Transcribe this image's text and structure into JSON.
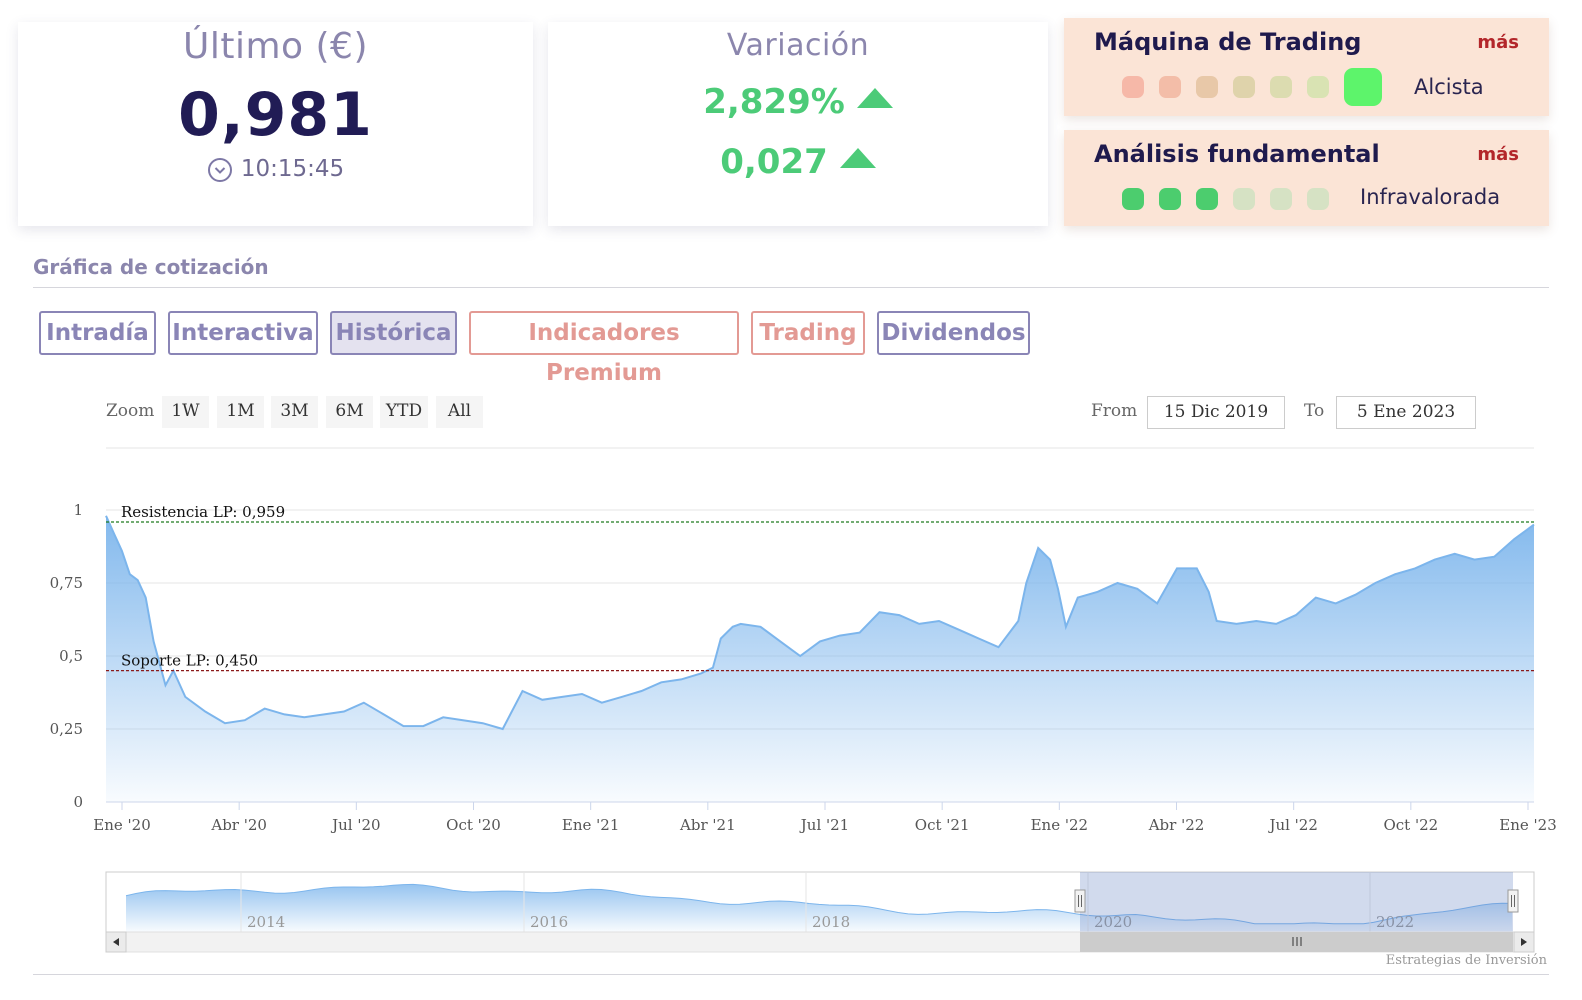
{
  "ultimo": {
    "title": "Último (€)",
    "value": "0,981",
    "time": "10:15:45"
  },
  "variacion": {
    "title": "Variación",
    "pct": "2,829%",
    "abs": "0,027"
  },
  "trading": {
    "title": "Máquina de Trading",
    "more": "más",
    "status": "Alcista",
    "dots": [
      "#f6b8a8",
      "#f3bda8",
      "#e8c8a8",
      "#dfd3ab",
      "#dcdcb0",
      "#d9e3b3",
      "#5df46b"
    ]
  },
  "fundamental": {
    "title": "Análisis fundamental",
    "more": "más",
    "status": "Infravalorada",
    "dots": [
      "#4ccd6e",
      "#4ccd6e",
      "#4ccd6e",
      "#d6e2c4",
      "#d6e2c4",
      "#d6e2c4"
    ]
  },
  "section": {
    "title": "Gráfica de cotización"
  },
  "tabs": [
    {
      "label": "Intradía",
      "style": "purple"
    },
    {
      "label": "Interactiva",
      "style": "purple"
    },
    {
      "label": "Histórica",
      "style": "purple",
      "active": true
    },
    {
      "label": "Indicadores Premium",
      "style": "red"
    },
    {
      "label": "Trading",
      "style": "red"
    },
    {
      "label": "Dividendos",
      "style": "purple"
    }
  ],
  "controls": {
    "zoom_label": "Zoom",
    "zoom_buttons": [
      "1W",
      "1M",
      "3M",
      "6M",
      "YTD",
      "All"
    ],
    "from_label": "From",
    "from_value": "15 Dic 2019",
    "to_label": "To",
    "to_value": "5 Ene 2023"
  },
  "credit": "Estrategias de Inversión",
  "chart_data": {
    "type": "area",
    "x_tick_labels": [
      "Ene '20",
      "Abr '20",
      "Jul '20",
      "Oct '20",
      "Ene '21",
      "Abr '21",
      "Jul '21",
      "Oct '21",
      "Ene '22",
      "Abr '22",
      "Jul '22",
      "Oct '22",
      "Ene '23"
    ],
    "y_tick_labels": [
      "0",
      "0,25",
      "0,5",
      "0,75",
      "1"
    ],
    "ylim": [
      0,
      1
    ],
    "grid": true,
    "series_color": "#7cb5ec",
    "resistance": {
      "label": "Resistencia LP: 0,959",
      "value": 0.959,
      "color": "#1e7a1e"
    },
    "support": {
      "label": "Soporte LP: 0,450",
      "value": 0.45,
      "color": "#8b1a1a"
    },
    "points": [
      [
        0,
        0.98
      ],
      [
        0.02,
        0.92
      ],
      [
        0.04,
        0.86
      ],
      [
        0.06,
        0.78
      ],
      [
        0.08,
        0.76
      ],
      [
        0.1,
        0.7
      ],
      [
        0.12,
        0.55
      ],
      [
        0.15,
        0.4
      ],
      [
        0.17,
        0.45
      ],
      [
        0.2,
        0.36
      ],
      [
        0.25,
        0.31
      ],
      [
        0.3,
        0.27
      ],
      [
        0.35,
        0.28
      ],
      [
        0.4,
        0.32
      ],
      [
        0.45,
        0.3
      ],
      [
        0.5,
        0.29
      ],
      [
        0.55,
        0.3
      ],
      [
        0.6,
        0.31
      ],
      [
        0.65,
        0.34
      ],
      [
        0.7,
        0.3
      ],
      [
        0.75,
        0.26
      ],
      [
        0.8,
        0.26
      ],
      [
        0.85,
        0.29
      ],
      [
        0.9,
        0.28
      ],
      [
        0.95,
        0.27
      ],
      [
        1.0,
        0.25
      ],
      [
        1.05,
        0.38
      ],
      [
        1.1,
        0.35
      ],
      [
        1.15,
        0.36
      ],
      [
        1.2,
        0.37
      ],
      [
        1.25,
        0.34
      ],
      [
        1.3,
        0.36
      ],
      [
        1.35,
        0.38
      ],
      [
        1.4,
        0.41
      ],
      [
        1.45,
        0.42
      ],
      [
        1.5,
        0.44
      ],
      [
        1.53,
        0.46
      ],
      [
        1.55,
        0.56
      ],
      [
        1.58,
        0.6
      ],
      [
        1.6,
        0.61
      ],
      [
        1.65,
        0.6
      ],
      [
        1.7,
        0.55
      ],
      [
        1.75,
        0.5
      ],
      [
        1.8,
        0.55
      ],
      [
        1.85,
        0.57
      ],
      [
        1.9,
        0.58
      ],
      [
        1.95,
        0.65
      ],
      [
        2.0,
        0.64
      ],
      [
        2.05,
        0.61
      ],
      [
        2.1,
        0.62
      ],
      [
        2.15,
        0.59
      ],
      [
        2.2,
        0.56
      ],
      [
        2.25,
        0.53
      ],
      [
        2.3,
        0.62
      ],
      [
        2.32,
        0.75
      ],
      [
        2.35,
        0.87
      ],
      [
        2.38,
        0.83
      ],
      [
        2.4,
        0.73
      ],
      [
        2.42,
        0.6
      ],
      [
        2.45,
        0.7
      ],
      [
        2.5,
        0.72
      ],
      [
        2.55,
        0.75
      ],
      [
        2.6,
        0.73
      ],
      [
        2.65,
        0.68
      ],
      [
        2.7,
        0.8
      ],
      [
        2.75,
        0.8
      ],
      [
        2.78,
        0.72
      ],
      [
        2.8,
        0.62
      ],
      [
        2.85,
        0.61
      ],
      [
        2.9,
        0.62
      ],
      [
        2.95,
        0.61
      ],
      [
        3.0,
        0.64
      ],
      [
        3.05,
        0.7
      ],
      [
        3.1,
        0.68
      ],
      [
        3.15,
        0.71
      ],
      [
        3.2,
        0.75
      ],
      [
        3.25,
        0.78
      ],
      [
        3.3,
        0.8
      ],
      [
        3.35,
        0.83
      ],
      [
        3.4,
        0.85
      ],
      [
        3.45,
        0.83
      ],
      [
        3.5,
        0.84
      ],
      [
        3.55,
        0.9
      ],
      [
        3.6,
        0.95
      ]
    ]
  },
  "navigator": {
    "labels": [
      "2014",
      "2016",
      "2018",
      "2020",
      "2022"
    ]
  }
}
